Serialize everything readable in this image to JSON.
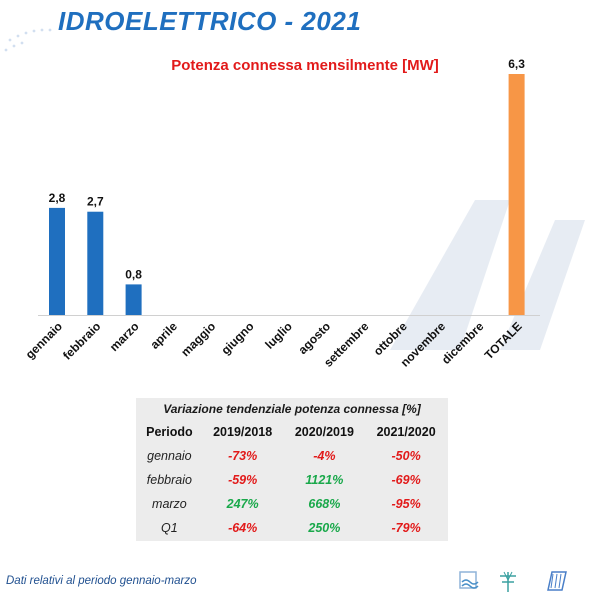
{
  "header": {
    "title": "IDROELETTRICO - 2021"
  },
  "chart_data": {
    "type": "bar",
    "title": "Potenza connessa mensilmente [MW]",
    "categories": [
      "gennaio",
      "febbraio",
      "marzo",
      "aprile",
      "maggio",
      "giugno",
      "luglio",
      "agosto",
      "settembre",
      "ottobre",
      "novembre",
      "dicembre",
      "TOTALE"
    ],
    "values": [
      2.8,
      2.7,
      0.8,
      null,
      null,
      null,
      null,
      null,
      null,
      null,
      null,
      null,
      6.3
    ],
    "data_labels": [
      "2,8",
      "2,7",
      "0,8",
      "",
      "",
      "",
      "",
      "",
      "",
      "",
      "",
      "",
      "6,3"
    ],
    "colors": {
      "months": "#1f6fbf",
      "total": "#f79646"
    },
    "ylim": [
      0,
      6.3
    ],
    "grid": false,
    "legend": "none"
  },
  "table": {
    "caption": "Variazione tendenziale potenza connessa [%]",
    "headers": [
      "Periodo",
      "2019/2018",
      "2020/2019",
      "2021/2020"
    ],
    "rows": [
      {
        "period": "gennaio",
        "values": [
          "-73%",
          "-4%",
          "-50%"
        ],
        "signs": [
          "neg",
          "neg",
          "neg"
        ]
      },
      {
        "period": "febbraio",
        "values": [
          "-59%",
          "1121%",
          "-69%"
        ],
        "signs": [
          "neg",
          "pos",
          "neg"
        ]
      },
      {
        "period": "marzo",
        "values": [
          "247%",
          "668%",
          "-95%"
        ],
        "signs": [
          "pos",
          "pos",
          "neg"
        ]
      },
      {
        "period": "Q1",
        "values": [
          "-64%",
          "250%",
          "-79%"
        ],
        "signs": [
          "neg",
          "pos",
          "neg"
        ]
      }
    ],
    "colors": {
      "negative": "#e21a1a",
      "positive": "#19a84a"
    }
  },
  "footer": {
    "note": "Dati relativi al periodo gennaio-marzo"
  },
  "icons": [
    "hydro-logo-icon",
    "wind-logo-icon",
    "solar-logo-icon"
  ]
}
